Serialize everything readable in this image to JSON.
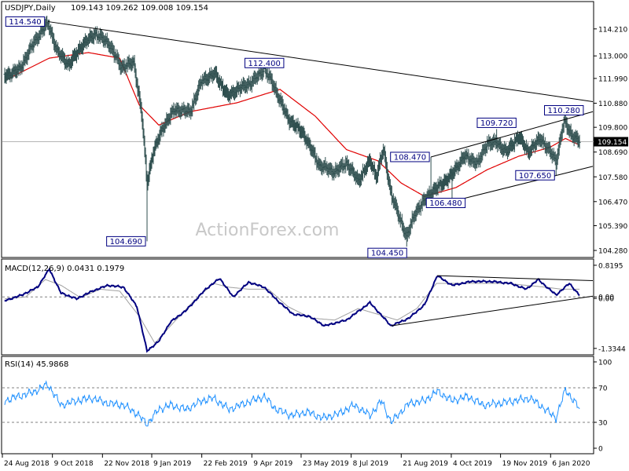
{
  "header": {
    "symbol": "USDJPY,Daily",
    "ohlc": "109.143 109.262 109.008 109.154"
  },
  "watermark": "ActionForex.com",
  "colors": {
    "background": "#ffffff",
    "frame": "#000000",
    "price_bars": "#2f4f4f",
    "sma": "#e00000",
    "trendline": "#000000",
    "macd_line": "#000080",
    "macd_signal": "#a0a0a0",
    "rsi_line": "#1e90ff",
    "guide": "#808080",
    "watermark": "#c8c8c8"
  },
  "chart_data": [
    {
      "type": "line",
      "name": "price",
      "title": "USDJPY,Daily",
      "ylim": [
        104.0,
        115.4
      ],
      "y_ticks": [
        "114.210",
        "113.000",
        "111.990",
        "110.880",
        "109.800",
        "108.690",
        "107.580",
        "106.470",
        "105.390",
        "104.280"
      ],
      "current_price": "109.154",
      "x_ticks": [
        "24 Aug 2018",
        "9 Oct 2018",
        "22 Nov 2018",
        "9 Jan 2019",
        "22 Feb 2019",
        "9 Apr 2019",
        "23 May 2019",
        "8 Jul 2019",
        "21 Aug 2019",
        "4 Oct 2019",
        "19 Nov 2019",
        "6 Jan 2020"
      ],
      "annotations": [
        {
          "label": "114.540",
          "index": 58,
          "value": 114.54
        },
        {
          "label": "104.690",
          "index": 185,
          "value": 104.69
        },
        {
          "label": "112.400",
          "index": 335,
          "value": 112.4
        },
        {
          "label": "104.450",
          "index": 517,
          "value": 104.45
        },
        {
          "label": "108.470",
          "index": 548,
          "value": 108.47
        },
        {
          "label": "106.480",
          "index": 575,
          "value": 106.48
        },
        {
          "label": "109.720",
          "index": 632,
          "value": 109.72
        },
        {
          "label": "110.280",
          "index": 718,
          "value": 110.28
        },
        {
          "label": "107.650",
          "index": 708,
          "value": 107.65
        }
      ],
      "anchors_index": [
        3,
        22,
        40,
        58,
        70,
        85,
        100,
        118,
        135,
        152,
        168,
        178,
        185,
        192,
        205,
        220,
        240,
        255,
        272,
        288,
        300,
        318,
        335,
        345,
        365,
        385,
        405,
        425,
        440,
        455,
        470,
        478,
        487,
        497,
        508,
        517,
        528,
        548,
        560,
        575,
        590,
        608,
        620,
        632,
        645,
        660,
        672,
        688,
        708,
        718,
        727,
        738
      ],
      "anchors_value": [
        112.1,
        112.4,
        113.6,
        114.5,
        113.2,
        112.6,
        113.4,
        114.0,
        113.6,
        112.5,
        112.7,
        110.4,
        107.3,
        108.6,
        109.8,
        110.6,
        110.5,
        111.9,
        112.2,
        111.2,
        111.5,
        111.8,
        112.4,
        111.8,
        110.2,
        109.5,
        108.1,
        107.8,
        108.2,
        107.4,
        108.3,
        107.6,
        108.8,
        106.8,
        105.7,
        104.9,
        106.0,
        106.9,
        107.2,
        107.7,
        108.5,
        108.2,
        109.1,
        109.1,
        108.7,
        109.4,
        108.7,
        109.3,
        108.3,
        110.1,
        109.5,
        109.154
      ],
      "sma_anchors_index": [
        3,
        60,
        110,
        150,
        175,
        200,
        240,
        300,
        355,
        400,
        440,
        480,
        510,
        540,
        580,
        620,
        660,
        700,
        720,
        738
      ],
      "sma_anchors_value": [
        111.9,
        112.9,
        113.15,
        112.9,
        110.8,
        109.9,
        110.5,
        110.9,
        111.5,
        110.3,
        108.8,
        108.3,
        107.3,
        106.7,
        107.1,
        107.9,
        108.5,
        108.9,
        109.3,
        109.0
      ],
      "trendlines": [
        {
          "from_index": 58,
          "from_value": 114.54,
          "to_index": 755,
          "to_value": 110.95
        },
        {
          "from_index": 548,
          "from_value": 108.47,
          "to_index": 755,
          "to_value": 110.5
        },
        {
          "from_index": 575,
          "from_value": 106.48,
          "to_index": 755,
          "to_value": 108.05
        }
      ]
    },
    {
      "type": "line",
      "name": "macd",
      "title": "MACD(12,26,9) 0.0431 0.1979",
      "ylim": [
        -1.48,
        0.96
      ],
      "y_ticks": [
        "0.8195",
        "0.00",
        "0.00",
        "-1.3344"
      ],
      "macd_anchors_index": [
        3,
        25,
        45,
        60,
        75,
        95,
        115,
        135,
        155,
        172,
        185,
        200,
        215,
        235,
        260,
        278,
        295,
        315,
        335,
        352,
        372,
        392,
        412,
        440,
        470,
        497,
        520,
        540,
        556,
        575,
        600,
        625,
        650,
        670,
        685,
        708,
        725,
        738
      ],
      "macd_anchors_value": [
        -0.1,
        0.05,
        0.25,
        0.72,
        0.1,
        -0.05,
        0.15,
        0.3,
        0.25,
        -0.25,
        -1.4,
        -1.15,
        -0.65,
        -0.35,
        0.2,
        0.48,
        0.0,
        0.38,
        0.25,
        -0.1,
        -0.45,
        -0.5,
        -0.75,
        -0.6,
        -0.15,
        -0.75,
        -0.55,
        -0.2,
        0.55,
        0.3,
        0.4,
        0.4,
        0.35,
        0.2,
        0.45,
        0.05,
        0.35,
        0.04
      ],
      "signal_anchors_index": [
        3,
        30,
        55,
        75,
        100,
        125,
        150,
        175,
        195,
        215,
        245,
        270,
        290,
        315,
        340,
        365,
        395,
        425,
        455,
        480,
        505,
        530,
        555,
        585,
        615,
        645,
        670,
        695,
        715,
        738
      ],
      "signal_anchors_value": [
        -0.05,
        0.0,
        0.45,
        0.3,
        -0.02,
        0.2,
        0.15,
        -0.5,
        -1.2,
        -0.75,
        -0.1,
        0.35,
        0.25,
        0.2,
        0.2,
        -0.25,
        -0.55,
        -0.6,
        -0.3,
        -0.45,
        -0.6,
        -0.3,
        0.35,
        0.35,
        0.35,
        0.35,
        0.3,
        0.25,
        0.2,
        0.2
      ],
      "trendlines": [
        {
          "from_index": 497,
          "from_value": -0.75,
          "to_index": 755,
          "to_value": 0.02
        },
        {
          "from_index": 556,
          "from_value": 0.55,
          "to_index": 755,
          "to_value": 0.42
        }
      ]
    },
    {
      "type": "line",
      "name": "rsi",
      "title": "RSI(14) 45.9868",
      "ylim": [
        0,
        100
      ],
      "y_ticks": [
        "100",
        "70",
        "30",
        "0"
      ],
      "levels": [
        70,
        30
      ],
      "rsi_anchors_index": [
        3,
        20,
        40,
        58,
        75,
        95,
        115,
        135,
        155,
        172,
        185,
        200,
        215,
        235,
        255,
        270,
        290,
        310,
        335,
        350,
        370,
        390,
        410,
        430,
        450,
        470,
        485,
        497,
        520,
        540,
        556,
        575,
        595,
        615,
        635,
        655,
        675,
        690,
        708,
        720,
        738
      ],
      "rsi_anchors_value": [
        55,
        60,
        65,
        74,
        50,
        55,
        58,
        52,
        50,
        40,
        28,
        45,
        50,
        45,
        55,
        58,
        45,
        52,
        60,
        45,
        38,
        42,
        35,
        40,
        50,
        38,
        55,
        30,
        52,
        55,
        66,
        55,
        60,
        50,
        52,
        55,
        58,
        48,
        35,
        68,
        46
      ]
    }
  ]
}
